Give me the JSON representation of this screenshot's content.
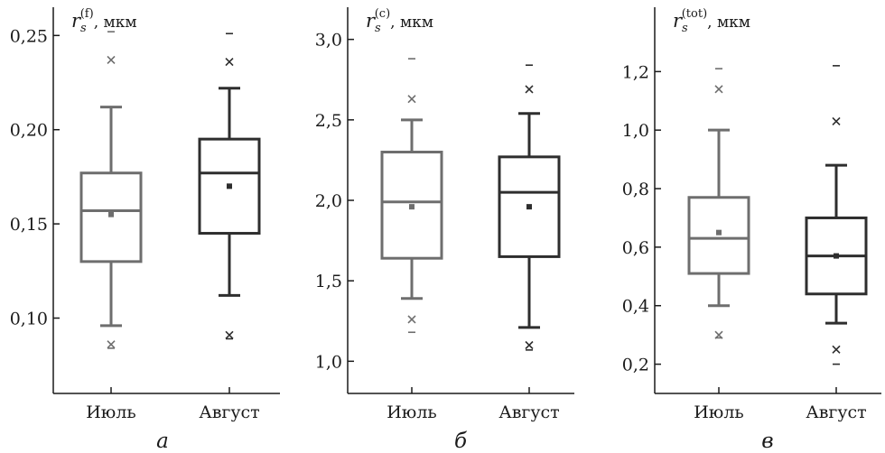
{
  "chart_data": [
    {
      "type": "box",
      "panel_label": "а",
      "ylabel_symbol": "r",
      "ylabel_sub": "s",
      "ylabel_sup": "(f)",
      "ylabel_unit": ",  мкм",
      "ylim": [
        0.06,
        0.265
      ],
      "y_ticks": [
        0.1,
        0.15,
        0.2,
        0.25
      ],
      "y_tick_labels": [
        "0,10",
        "0,15",
        "0,20",
        "0,25"
      ],
      "categories": [
        "Июль",
        "Август"
      ],
      "boxes": [
        {
          "category": "Июль",
          "color": "#6e6e6e",
          "whisker_low": 0.096,
          "q1": 0.13,
          "median": 0.157,
          "q3": 0.177,
          "whisker_high": 0.212,
          "mean": 0.155,
          "outliers_x": [
            0.237,
            0.086
          ],
          "extremes": [
            0.252,
            0.084
          ]
        },
        {
          "category": "Август",
          "color": "#2e2e2e",
          "whisker_low": 0.112,
          "q1": 0.145,
          "median": 0.177,
          "q3": 0.195,
          "whisker_high": 0.222,
          "mean": 0.17,
          "outliers_x": [
            0.236,
            0.091
          ],
          "extremes": [
            0.251,
            0.089
          ]
        }
      ]
    },
    {
      "type": "box",
      "panel_label": "б",
      "ylabel_symbol": "r",
      "ylabel_sub": "s",
      "ylabel_sup": "(c)",
      "ylabel_unit": ",  мкм",
      "ylim": [
        0.8,
        3.2
      ],
      "y_ticks": [
        1.0,
        1.5,
        2.0,
        2.5,
        3.0
      ],
      "y_tick_labels": [
        "1,0",
        "1,5",
        "2,0",
        "2,5",
        "3,0"
      ],
      "categories": [
        "Июль",
        "Август"
      ],
      "boxes": [
        {
          "category": "Июль",
          "color": "#6e6e6e",
          "whisker_low": 1.39,
          "q1": 1.64,
          "median": 1.99,
          "q3": 2.3,
          "whisker_high": 2.5,
          "mean": 1.96,
          "outliers_x": [
            2.63,
            1.26
          ],
          "extremes": [
            2.88,
            1.18
          ]
        },
        {
          "category": "Август",
          "color": "#2e2e2e",
          "whisker_low": 1.21,
          "q1": 1.65,
          "median": 2.05,
          "q3": 2.27,
          "whisker_high": 2.54,
          "mean": 1.96,
          "outliers_x": [
            2.69,
            1.1
          ],
          "extremes": [
            2.84,
            1.07
          ]
        }
      ]
    },
    {
      "type": "box",
      "panel_label": "в",
      "ylabel_symbol": "r",
      "ylabel_sub": "s",
      "ylabel_sup": "(tot)",
      "ylabel_unit": ",  мкм",
      "ylim": [
        0.1,
        1.42
      ],
      "y_ticks": [
        0.2,
        0.4,
        0.6,
        0.8,
        1.0,
        1.2
      ],
      "y_tick_labels": [
        "0,2",
        "0,4",
        "0,6",
        "0,8",
        "1,0",
        "1,2"
      ],
      "categories": [
        "Июль",
        "Август"
      ],
      "boxes": [
        {
          "category": "Июль",
          "color": "#6e6e6e",
          "whisker_low": 0.4,
          "q1": 0.51,
          "median": 0.63,
          "q3": 0.77,
          "whisker_high": 1.0,
          "mean": 0.65,
          "outliers_x": [
            1.14,
            0.3
          ],
          "extremes": [
            1.21,
            0.29
          ]
        },
        {
          "category": "Август",
          "color": "#2e2e2e",
          "whisker_low": 0.34,
          "q1": 0.44,
          "median": 0.57,
          "q3": 0.7,
          "whisker_high": 0.88,
          "mean": 0.57,
          "outliers_x": [
            1.03,
            0.25
          ],
          "extremes": [
            1.22,
            0.2
          ]
        }
      ]
    }
  ]
}
